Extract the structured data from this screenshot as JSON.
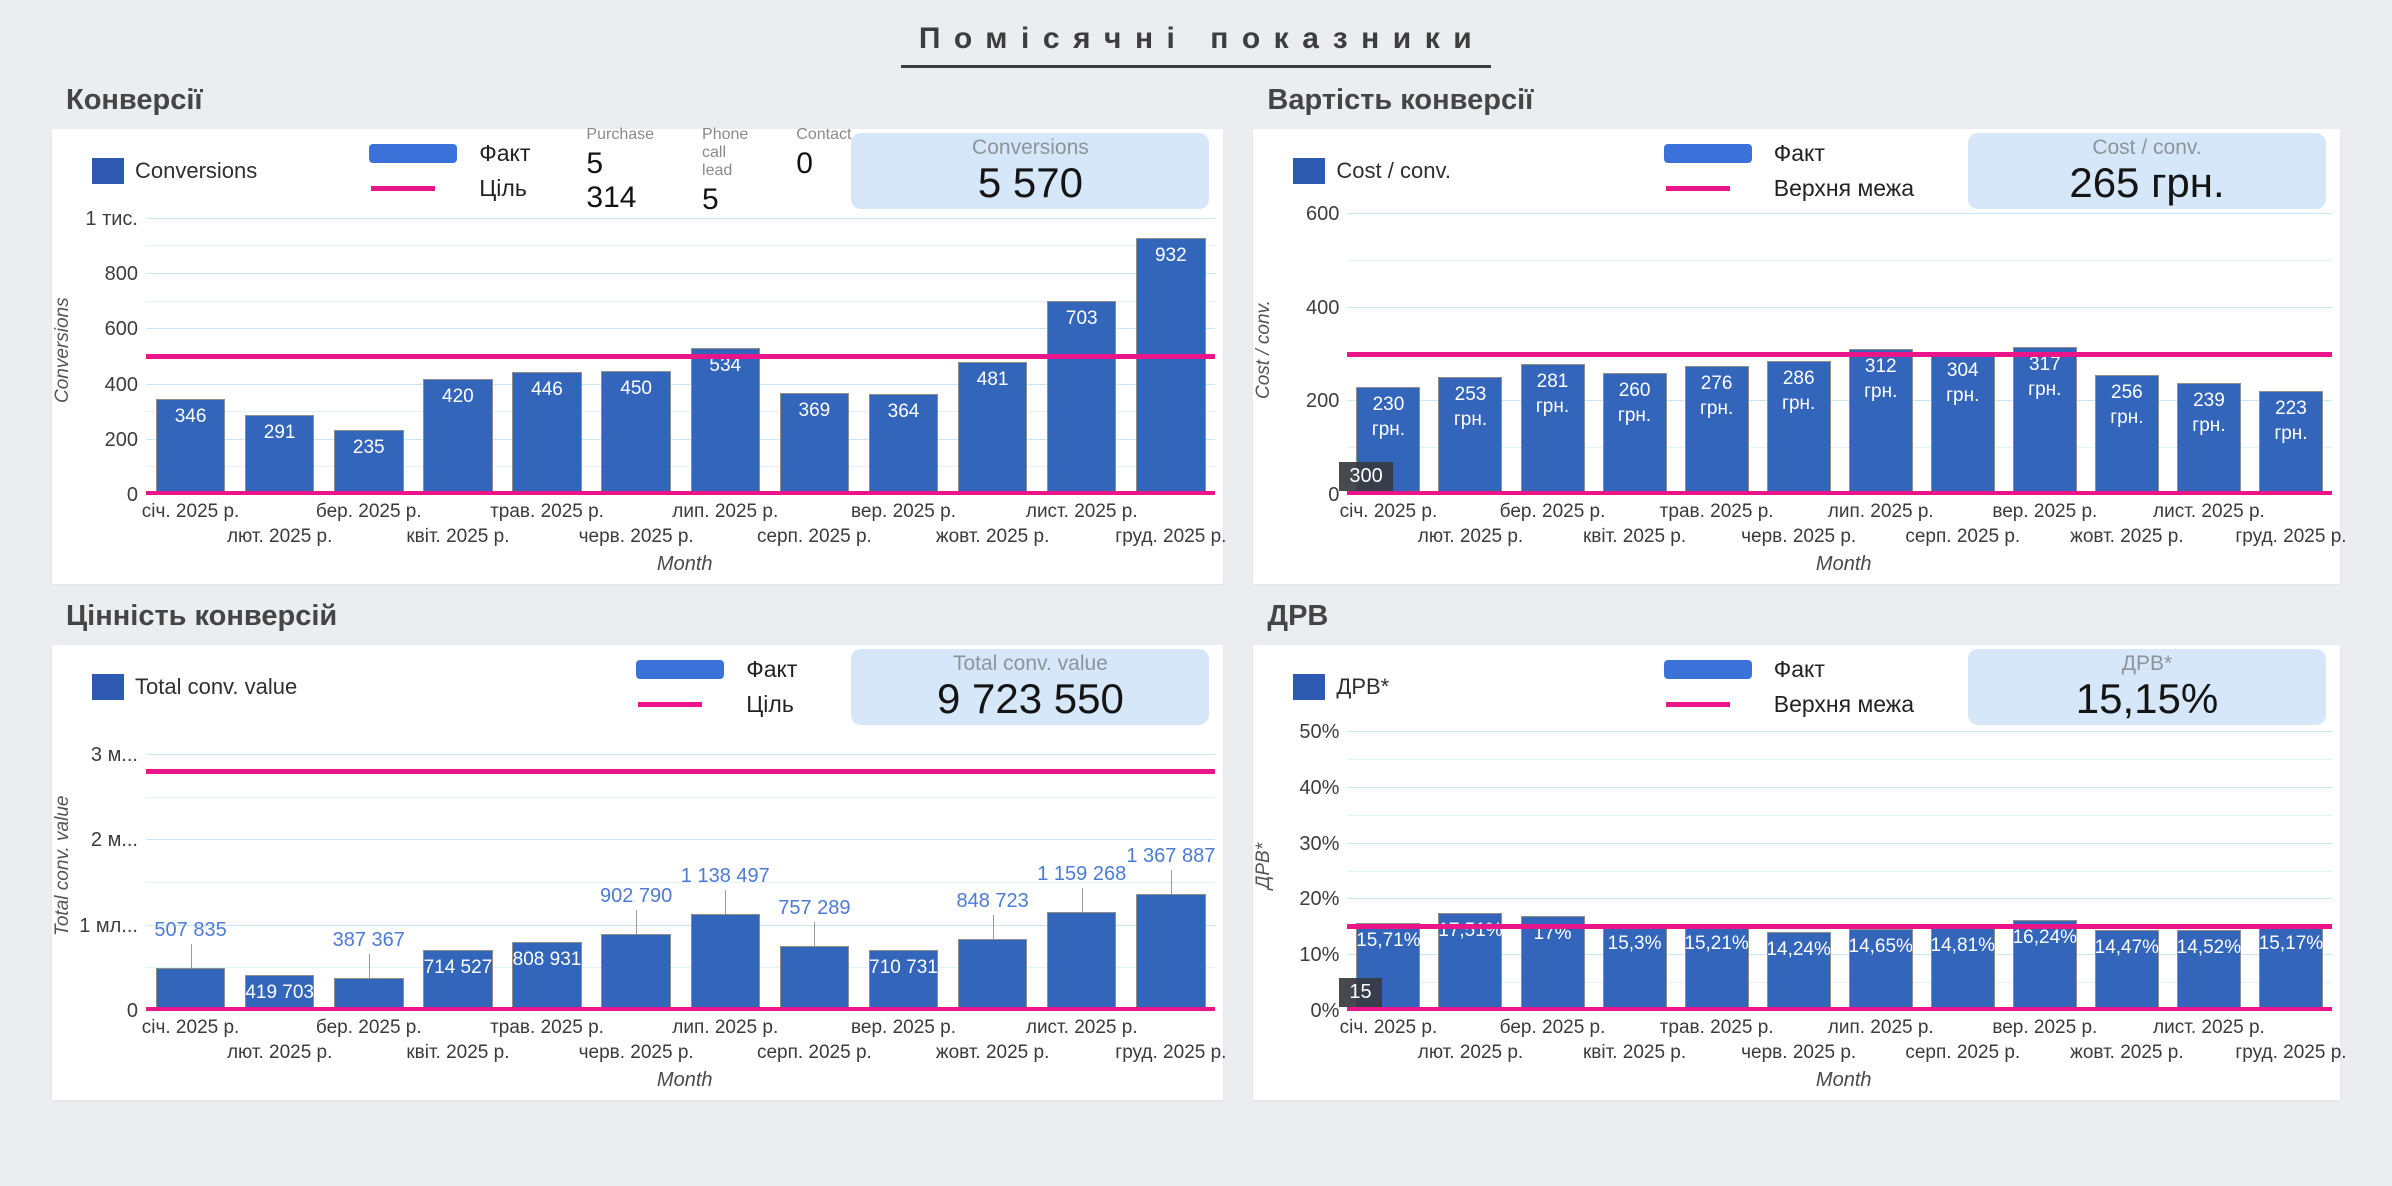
{
  "page": {
    "title": "Помісячні показники"
  },
  "colors": {
    "background": "#ecedf1",
    "bar": "#3366bb",
    "limit_line": "#ea1588",
    "grid_major": "#c7e7f6",
    "grid_minor": "#e1f2fa",
    "label_above": "#4d7bd4",
    "kpi_background": "#d5e7f8",
    "chip_background": "#3a3f47"
  },
  "chart_data": [
    {
      "id": "conversions",
      "type": "bar",
      "section_title": "Конверсії",
      "series_label": "Conversions",
      "fact_label": "Факт",
      "limit_label": "Ціль",
      "stats": [
        {
          "label": "Purchase",
          "value": "5 314"
        },
        {
          "label": "Phone call lead",
          "value": "5"
        },
        {
          "label": "Contact",
          "value": "0"
        }
      ],
      "kpi": {
        "label": "Conversions",
        "value": "5 570"
      },
      "xlabel": "Month",
      "ylabel": "Conversions",
      "legend_position": "top",
      "grid": true,
      "categories": [
        "січ. 2025 р.",
        "лют. 2025 р.",
        "бер. 2025 р.",
        "квіт. 2025 р.",
        "трав. 2025 р.",
        "черв. 2025 р.",
        "лип. 2025 р.",
        "серп. 2025 р.",
        "вер. 2025 р.",
        "жовт. 2025 р.",
        "лист. 2025 р.",
        "груд. 2025 р."
      ],
      "values": [
        346,
        291,
        235,
        420,
        446,
        450,
        534,
        369,
        364,
        481,
        703,
        932
      ],
      "bar_labels": [
        "346",
        "291",
        "235",
        "420",
        "446",
        "450",
        "534",
        "369",
        "364",
        "481",
        "703",
        "932"
      ],
      "label_pos": "inside",
      "ylim": [
        0,
        1000
      ],
      "yticks": [
        {
          "value": 0,
          "label": "0"
        },
        {
          "value": 200,
          "label": "200"
        },
        {
          "value": 400,
          "label": "400"
        },
        {
          "value": 600,
          "label": "600"
        },
        {
          "value": 800,
          "label": "800"
        },
        {
          "value": 1000,
          "label": "1 тис."
        }
      ],
      "grid_step": 100,
      "grid_max": 1000,
      "ymax_render": 1050,
      "limit_value": 500,
      "limit_chip": null
    },
    {
      "id": "cost-per-conversion",
      "type": "bar",
      "section_title": "Вартість конверсії",
      "series_label": "Cost / conv.",
      "fact_label": "Факт",
      "limit_label": "Верхня межа",
      "stats": [],
      "kpi": {
        "label": "Cost / conv.",
        "value": "265 грн."
      },
      "xlabel": "Month",
      "ylabel": "Cost / conv.",
      "legend_position": "top",
      "grid": true,
      "categories": [
        "січ. 2025 р.",
        "лют. 2025 р.",
        "бер. 2025 р.",
        "квіт. 2025 р.",
        "трав. 2025 р.",
        "черв. 2025 р.",
        "лип. 2025 р.",
        "серп. 2025 р.",
        "вер. 2025 р.",
        "жовт. 2025 р.",
        "лист. 2025 р.",
        "груд. 2025 р."
      ],
      "values": [
        230,
        253,
        281,
        260,
        276,
        286,
        312,
        304,
        317,
        256,
        239,
        223
      ],
      "bar_labels": [
        "230\nгрн.",
        "253\nгрн.",
        "281\nгрн.",
        "260\nгрн.",
        "276\nгрн.",
        "286\nгрн.",
        "312\nгрн.",
        "304\nгрн.",
        "317\nгрн.",
        "256\nгрн.",
        "239\nгрн.",
        "223\nгрн."
      ],
      "label_pos": "inside",
      "ylim": [
        0,
        600
      ],
      "yticks": [
        {
          "value": 0,
          "label": "0"
        },
        {
          "value": 200,
          "label": "200"
        },
        {
          "value": 400,
          "label": "400"
        },
        {
          "value": 600,
          "label": "600"
        }
      ],
      "grid_step": 100,
      "grid_max": 600,
      "ymax_render": 620,
      "limit_value": 300,
      "limit_chip": "300"
    },
    {
      "id": "conversion-value",
      "type": "bar",
      "section_title": "Цінність конверсій",
      "series_label": "Total conv. value",
      "fact_label": "Факт",
      "limit_label": "Ціль",
      "stats": [],
      "kpi": {
        "label": "Total conv. value",
        "value": "9 723 550"
      },
      "xlabel": "Month",
      "ylabel": "Total conv. value",
      "legend_position": "top",
      "grid": true,
      "categories": [
        "січ. 2025 р.",
        "лют. 2025 р.",
        "бер. 2025 р.",
        "квіт. 2025 р.",
        "трав. 2025 р.",
        "черв. 2025 р.",
        "лип. 2025 р.",
        "серп. 2025 р.",
        "вер. 2025 р.",
        "жовт. 2025 р.",
        "лист. 2025 р.",
        "груд. 2025 р."
      ],
      "values": [
        507835,
        419703,
        387367,
        714527,
        808931,
        902790,
        1138497,
        757289,
        710731,
        848723,
        1159268,
        1367887
      ],
      "bar_labels": [
        "507 835",
        "419 703",
        "387 367",
        "714 527",
        "808 931",
        "902 790",
        "1 138 497",
        "757 289",
        "710 731",
        "848 723",
        "1 159 268",
        "1 367 887"
      ],
      "label_pos": [
        "above",
        "inside",
        "above",
        "inside",
        "inside",
        "above",
        "above",
        "above",
        "inside",
        "above",
        "above",
        "above"
      ],
      "ylim": [
        0,
        3000000
      ],
      "yticks": [
        {
          "value": 0,
          "label": "0"
        },
        {
          "value": 1000000,
          "label": "1 мл..."
        },
        {
          "value": 2000000,
          "label": "2 м..."
        },
        {
          "value": 3000000,
          "label": "3 м..."
        }
      ],
      "grid_step": 500000,
      "grid_max": 3000000,
      "ymax_render": 3400000,
      "limit_value": 2800000,
      "limit_chip": null
    },
    {
      "id": "drv",
      "type": "bar",
      "section_title": "ДРВ",
      "series_label": "ДРВ*",
      "fact_label": "Факт",
      "limit_label": "Верхня межа",
      "stats": [],
      "kpi": {
        "label": "ДРВ*",
        "value": "15,15%"
      },
      "xlabel": "Month",
      "ylabel": "ДРВ*",
      "legend_position": "top",
      "grid": true,
      "categories": [
        "січ. 2025 р.",
        "лют. 2025 р.",
        "бер. 2025 р.",
        "квіт. 2025 р.",
        "трав. 2025 р.",
        "черв. 2025 р.",
        "лип. 2025 р.",
        "серп. 2025 р.",
        "вер. 2025 р.",
        "жовт. 2025 р.",
        "лист. 2025 р.",
        "груд. 2025 р."
      ],
      "values": [
        15.71,
        17.51,
        17,
        15.3,
        15.21,
        14.24,
        14.65,
        14.81,
        16.24,
        14.47,
        14.52,
        15.17
      ],
      "bar_labels": [
        "15,71%",
        "17,51%",
        "17%",
        "15,3%",
        "15,21%",
        "14,24%",
        "14,65%",
        "14,81%",
        "16,24%",
        "14,47%",
        "14,52%",
        "15,17%"
      ],
      "label_pos": "inside",
      "ylim": [
        0,
        50
      ],
      "yticks": [
        {
          "value": 0,
          "label": "0%"
        },
        {
          "value": 10,
          "label": "10%"
        },
        {
          "value": 20,
          "label": "20%"
        },
        {
          "value": 30,
          "label": "30%"
        },
        {
          "value": 40,
          "label": "40%"
        },
        {
          "value": 50,
          "label": "50%"
        }
      ],
      "grid_step": 5,
      "grid_max": 50,
      "ymax_render": 52,
      "limit_value": 15,
      "limit_chip": "15"
    }
  ]
}
